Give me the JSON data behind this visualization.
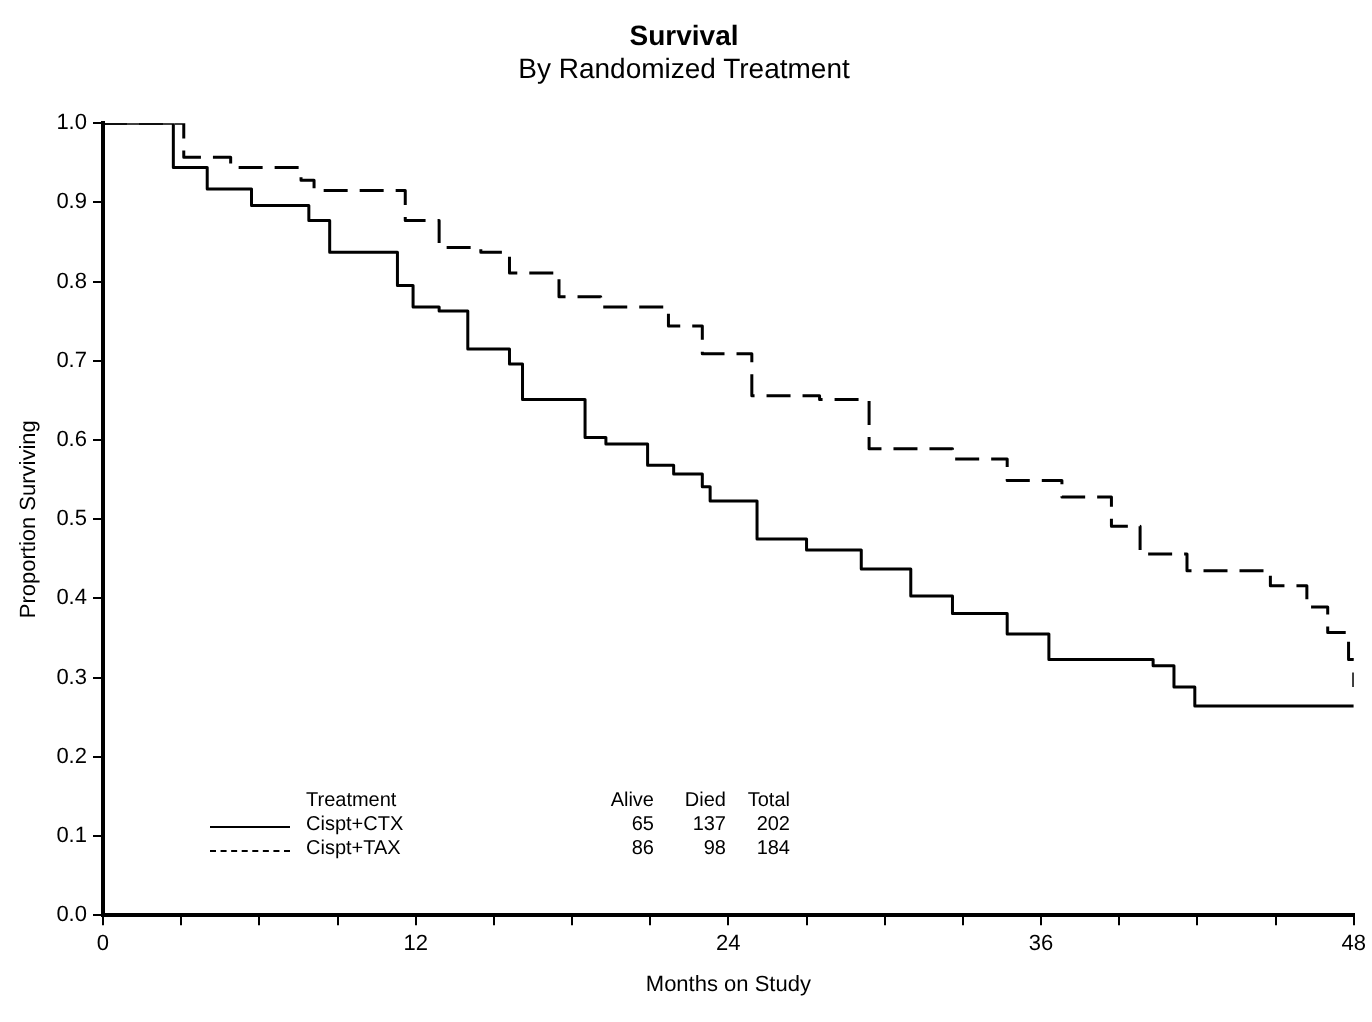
{
  "chart_data": {
    "type": "step",
    "title": "Survival",
    "subtitle": "By Randomized Treatment",
    "xlabel": "Months on Study",
    "ylabel": "Proportion Surviving",
    "legend_title": "Treatment",
    "legend": "bottom left",
    "marker": "none",
    "grid": false,
    "xlim": [
      0,
      48
    ],
    "xticks": [
      0,
      {
        "value": 3,
        "label": null
      },
      {
        "value": 6,
        "label": null
      },
      {
        "value": 9,
        "label": null
      },
      12,
      {
        "value": 15,
        "label": null
      },
      {
        "value": 18,
        "label": null
      },
      {
        "value": 21,
        "label": null
      },
      24,
      {
        "value": 27,
        "label": null
      },
      {
        "value": 30,
        "label": null
      },
      {
        "value": 33,
        "label": null
      },
      36,
      {
        "value": 39,
        "label": null
      },
      {
        "value": 42,
        "label": null
      },
      {
        "value": 45,
        "label": null
      },
      48
    ],
    "ylim": [
      0,
      1
    ],
    "yticks": [
      {
        "value": 0,
        "label": "0.0"
      },
      0.1,
      0.2,
      0.3,
      0.4,
      0.5,
      0.6,
      0.7,
      0.8,
      0.9,
      {
        "value": 1,
        "label": "1.0"
      }
    ],
    "series": [
      {
        "name": "Cispt+CTX",
        "color": "#000000",
        "line_style": "solid",
        "x": [
          0,
          2.7,
          4.0,
          5.7,
          7.9,
          8.7,
          11.3,
          11.9,
          12.9,
          14.0,
          15.6,
          16.1,
          18.5,
          19.3,
          20.9,
          21.9,
          23.0,
          23.3,
          25.1,
          27.0,
          29.1,
          31.0,
          32.6,
          34.7,
          36.3,
          40.3,
          41.1,
          41.9,
          48
        ],
        "values": [
          1.0,
          0.944,
          0.917,
          0.896,
          0.877,
          0.837,
          0.795,
          0.768,
          0.763,
          0.715,
          0.696,
          0.651,
          0.603,
          0.595,
          0.568,
          0.557,
          0.541,
          0.523,
          0.475,
          0.461,
          0.437,
          0.403,
          0.381,
          0.355,
          0.323,
          0.315,
          0.288,
          0.264,
          0.264
        ]
      },
      {
        "name": "Cispt+TAX",
        "color": "#000000",
        "line_style": "dashed",
        "x": [
          0,
          3.1,
          4.9,
          7.6,
          8.1,
          11.6,
          12.9,
          14.5,
          15.6,
          17.5,
          19.1,
          21.7,
          23.0,
          24.9,
          27.5,
          29.4,
          32.6,
          34.7,
          36.8,
          38.7,
          39.8,
          41.6,
          44.8,
          46.2,
          47.0,
          47.8,
          48
        ],
        "values": [
          1.0,
          0.957,
          0.944,
          0.928,
          0.915,
          0.877,
          0.843,
          0.837,
          0.811,
          0.781,
          0.768,
          0.744,
          0.709,
          0.656,
          0.651,
          0.589,
          0.576,
          0.549,
          0.528,
          0.491,
          0.456,
          0.435,
          0.416,
          0.389,
          0.357,
          0.323,
          0.288
        ]
      }
    ],
    "annotations": [
      "Alive",
      "Died",
      "Total",
      "65",
      "137",
      "202",
      "86",
      "98",
      "184"
    ]
  }
}
